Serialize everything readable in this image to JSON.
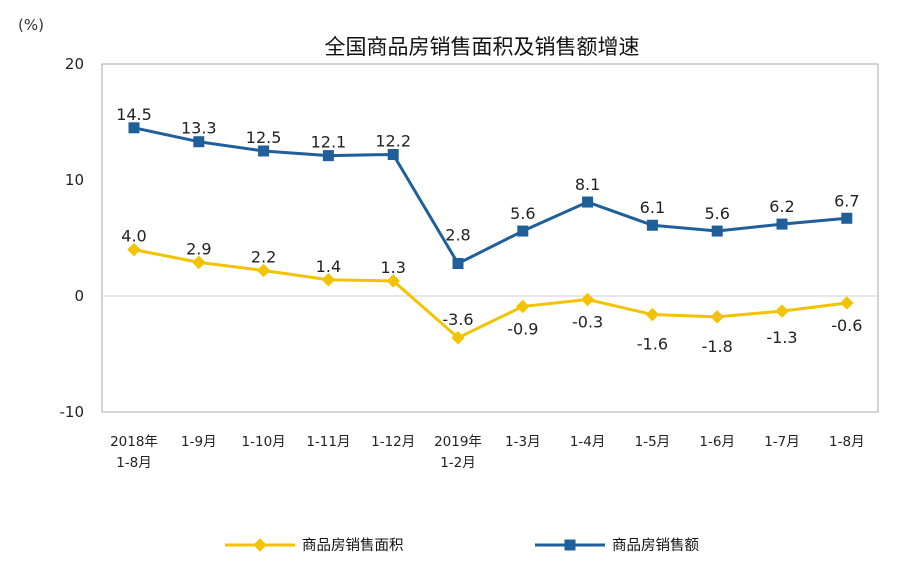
{
  "chart_data": {
    "type": "line",
    "title": "全国商品房销售面积及销售额增速",
    "unit": "(%)",
    "ylim": [
      -10,
      20
    ],
    "yticks": [
      -10,
      0,
      10,
      20
    ],
    "grid": false,
    "legend_position": "bottom",
    "categories": [
      [
        "2018年",
        "1-8月"
      ],
      [
        "1-9月"
      ],
      [
        "1-10月"
      ],
      [
        "1-11月"
      ],
      [
        "1-12月"
      ],
      [
        "2019年",
        "1-2月"
      ],
      [
        "1-3月"
      ],
      [
        "1-4月"
      ],
      [
        "1-5月"
      ],
      [
        "1-6月"
      ],
      [
        "1-7月"
      ],
      [
        "1-8月"
      ]
    ],
    "series": [
      {
        "name": "商品房销售额",
        "color": "#1f5f9a",
        "marker": "square",
        "values": [
          14.5,
          13.3,
          12.5,
          12.1,
          12.2,
          2.8,
          5.6,
          8.1,
          6.1,
          5.6,
          6.2,
          6.7
        ],
        "labels": [
          "14.5",
          "13.3",
          "12.5",
          "12.1",
          "12.2",
          "2.8",
          "5.6",
          "8.1",
          "6.1",
          "5.6",
          "6.2",
          "6.7"
        ]
      },
      {
        "name": "商品房销售面积",
        "color": "#f2c300",
        "marker": "diamond",
        "values": [
          4.0,
          2.9,
          2.2,
          1.4,
          1.3,
          -3.6,
          -0.9,
          -0.3,
          -1.6,
          -1.8,
          -1.3,
          -0.6
        ],
        "labels": [
          "4.0",
          "2.9",
          "2.2",
          "1.4",
          "1.3",
          "-3.6",
          "-0.9",
          "-0.3",
          "-1.6",
          "-1.8",
          "-1.3",
          "-0.6"
        ]
      }
    ],
    "legend_order": [
      "商品房销售面积",
      "商品房销售额"
    ]
  }
}
